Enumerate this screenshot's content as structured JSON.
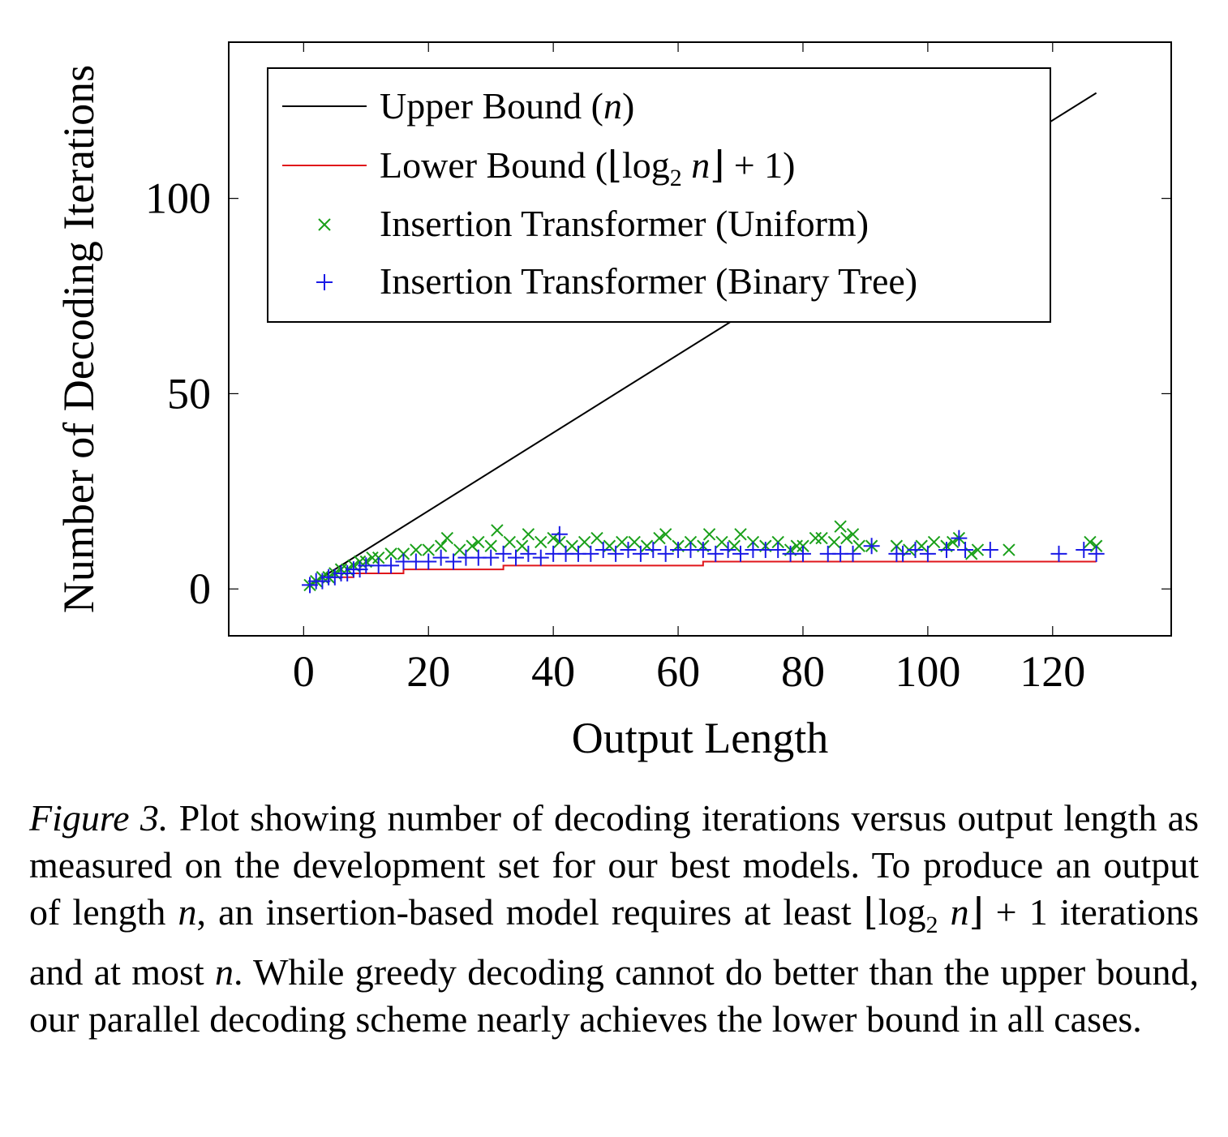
{
  "chart_data": {
    "type": "scatter",
    "title": "",
    "xlabel": "Output Length",
    "ylabel": "Number of Decoding Iterations",
    "xlim": [
      -12,
      139
    ],
    "ylim": [
      -12,
      140
    ],
    "xticks": [
      0,
      20,
      40,
      60,
      80,
      100,
      120
    ],
    "yticks": [
      0,
      50,
      100
    ],
    "x_tick_labels": [
      "0",
      "20",
      "40",
      "60",
      "80",
      "100",
      "120"
    ],
    "y_tick_labels": [
      "0",
      "50",
      "100"
    ],
    "legend_position": "top-left",
    "series": [
      {
        "name": "Upper Bound (n)",
        "legend_label": "Upper Bound (",
        "legend_math": "n",
        "legend_suffix": ")",
        "kind": "line",
        "color": "#000000",
        "x": [
          1,
          127
        ],
        "y": [
          1,
          127
        ]
      },
      {
        "name": "Lower Bound (⌊log2 n⌋ + 1)",
        "legend_label": "Lower Bound (⌊log",
        "legend_sub": "2",
        "legend_math": " n",
        "legend_suffix": "⌋ + 1)",
        "kind": "line",
        "color": "#e0161b",
        "x": [
          1,
          2,
          4,
          8,
          16,
          32,
          64,
          127
        ],
        "y": [
          1,
          2,
          3,
          4,
          5,
          6,
          7,
          7
        ]
      },
      {
        "name": "Insertion Transformer (Uniform)",
        "legend_label": "Insertion Transformer (Uniform)",
        "kind": "scatter",
        "marker": "x",
        "color": "#1aa01a",
        "points": [
          [
            1,
            1
          ],
          [
            2,
            2
          ],
          [
            3,
            3
          ],
          [
            4,
            3
          ],
          [
            5,
            4
          ],
          [
            6,
            5
          ],
          [
            7,
            5
          ],
          [
            8,
            6
          ],
          [
            9,
            7
          ],
          [
            10,
            7
          ],
          [
            11,
            8
          ],
          [
            12,
            8
          ],
          [
            14,
            9
          ],
          [
            16,
            9
          ],
          [
            18,
            10
          ],
          [
            20,
            10
          ],
          [
            22,
            11
          ],
          [
            23,
            13
          ],
          [
            25,
            10
          ],
          [
            27,
            11
          ],
          [
            28,
            12
          ],
          [
            30,
            11
          ],
          [
            31,
            15
          ],
          [
            33,
            12
          ],
          [
            35,
            11
          ],
          [
            36,
            14
          ],
          [
            38,
            12
          ],
          [
            40,
            13
          ],
          [
            41,
            12
          ],
          [
            43,
            11
          ],
          [
            45,
            12
          ],
          [
            47,
            13
          ],
          [
            49,
            11
          ],
          [
            51,
            12
          ],
          [
            53,
            12
          ],
          [
            55,
            11
          ],
          [
            57,
            13
          ],
          [
            58,
            14
          ],
          [
            60,
            11
          ],
          [
            62,
            12
          ],
          [
            64,
            11
          ],
          [
            65,
            14
          ],
          [
            67,
            12
          ],
          [
            69,
            11
          ],
          [
            70,
            14
          ],
          [
            72,
            12
          ],
          [
            74,
            11
          ],
          [
            76,
            12
          ],
          [
            78,
            10
          ],
          [
            79,
            11
          ],
          [
            80,
            11
          ],
          [
            82,
            13
          ],
          [
            83,
            13
          ],
          [
            85,
            12
          ],
          [
            86,
            16
          ],
          [
            87,
            13
          ],
          [
            88,
            14
          ],
          [
            89,
            11
          ],
          [
            91,
            11
          ],
          [
            95,
            11
          ],
          [
            97,
            10
          ],
          [
            99,
            11
          ],
          [
            101,
            12
          ],
          [
            103,
            11
          ],
          [
            104,
            12
          ],
          [
            105,
            13
          ],
          [
            107,
            9
          ],
          [
            108,
            10
          ],
          [
            113,
            10
          ],
          [
            126,
            12
          ],
          [
            127,
            11
          ]
        ]
      },
      {
        "name": "Insertion Transformer (Binary Tree)",
        "legend_label": "Insertion Transformer (Binary Tree)",
        "kind": "scatter",
        "marker": "+",
        "color": "#1a1ae6",
        "points": [
          [
            1,
            1
          ],
          [
            2,
            2
          ],
          [
            3,
            2
          ],
          [
            4,
            3
          ],
          [
            5,
            3
          ],
          [
            6,
            4
          ],
          [
            7,
            4
          ],
          [
            8,
            5
          ],
          [
            9,
            5
          ],
          [
            10,
            6
          ],
          [
            12,
            6
          ],
          [
            14,
            6
          ],
          [
            16,
            7
          ],
          [
            18,
            7
          ],
          [
            20,
            7
          ],
          [
            22,
            8
          ],
          [
            24,
            7
          ],
          [
            26,
            8
          ],
          [
            28,
            8
          ],
          [
            30,
            8
          ],
          [
            32,
            9
          ],
          [
            34,
            8
          ],
          [
            36,
            9
          ],
          [
            38,
            8
          ],
          [
            40,
            9
          ],
          [
            41,
            14
          ],
          [
            42,
            9
          ],
          [
            44,
            9
          ],
          [
            46,
            9
          ],
          [
            48,
            10
          ],
          [
            50,
            9
          ],
          [
            52,
            10
          ],
          [
            54,
            9
          ],
          [
            56,
            10
          ],
          [
            58,
            9
          ],
          [
            60,
            10
          ],
          [
            62,
            10
          ],
          [
            64,
            10
          ],
          [
            66,
            9
          ],
          [
            68,
            10
          ],
          [
            70,
            9
          ],
          [
            72,
            10
          ],
          [
            74,
            10
          ],
          [
            76,
            10
          ],
          [
            78,
            9
          ],
          [
            80,
            9
          ],
          [
            84,
            9
          ],
          [
            86,
            9
          ],
          [
            88,
            9
          ],
          [
            91,
            11
          ],
          [
            95,
            9
          ],
          [
            96,
            9
          ],
          [
            98,
            10
          ],
          [
            100,
            9
          ],
          [
            103,
            10
          ],
          [
            105,
            13
          ],
          [
            106,
            10
          ],
          [
            110,
            10
          ],
          [
            121,
            9
          ],
          [
            125,
            10
          ],
          [
            127,
            9
          ]
        ]
      }
    ]
  },
  "caption": {
    "label": "Figure 3.",
    "line1": "Plot showing number of decoding iterations versus output length as measured on the development set for our best models. To produce an output of length ",
    "var_n": "n",
    "line2": ", an insertion-based model requires at least ⌊log",
    "sub2": "2",
    "var_n2": " n",
    "line3": "⌋ + 1 iterations and at most ",
    "var_n3": "n",
    "line4": ". While greedy decoding cannot do better than the upper bound, our parallel decoding scheme nearly achieves the lower bound in all cases."
  }
}
